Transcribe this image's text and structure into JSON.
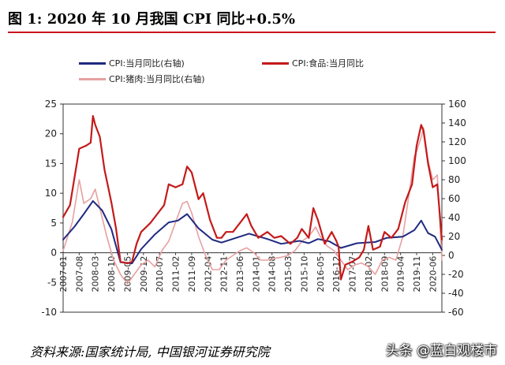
{
  "title": "图 1:  2020 年 10 月我国 CPI 同比+0.5%",
  "source": "资料来源:国家统计局, 中国银河证券研究院",
  "watermark": "头条 @蓝白观楼市",
  "colors": {
    "cpi": "#1f2a80",
    "food": "#c41a1a",
    "pork": "#e8a0a0",
    "rule": "#c8141e"
  },
  "chart_data": {
    "type": "line",
    "title": "",
    "legend": [
      {
        "name": "CPI:当月同比(右轴)",
        "color": "#1f2a80"
      },
      {
        "name": "CPI:食品:当月同比",
        "color": "#c41a1a"
      },
      {
        "name": "CPI:猪肉:当月同比(右轴)",
        "color": "#e8a0a0"
      }
    ],
    "left_axis": {
      "min": -10,
      "max": 25,
      "ticks": [
        -10,
        -5,
        0,
        5,
        10,
        15,
        20,
        25
      ]
    },
    "right_axis": {
      "min": -60,
      "max": 160,
      "ticks": [
        -60,
        -40,
        -20,
        0,
        20,
        40,
        60,
        80,
        100,
        120,
        140,
        160
      ]
    },
    "x_axis": {
      "start": "2007-01",
      "end": "2020-10",
      "tick_labels": [
        "2007-01",
        "2007-08",
        "2008-03",
        "2008-10",
        "2009-05",
        "2009-12",
        "2010-07",
        "2011-02",
        "2011-09",
        "2012-04",
        "2012-11",
        "2013-06",
        "2014-01",
        "2014-08",
        "2015-03",
        "2015-10",
        "2016-05",
        "2016-12",
        "2017-07",
        "2018-02",
        "2018-09",
        "2019-04",
        "2019-11",
        "2020-06"
      ]
    },
    "series": [
      {
        "name": "CPI:当月同比(右轴)",
        "axis": "left",
        "points": [
          [
            "2007-01",
            2.2
          ],
          [
            "2007-06",
            4.4
          ],
          [
            "2007-10",
            6.5
          ],
          [
            "2008-02",
            8.7
          ],
          [
            "2008-06",
            7.1
          ],
          [
            "2008-10",
            4.0
          ],
          [
            "2009-02",
            -1.6
          ],
          [
            "2009-07",
            -1.8
          ],
          [
            "2009-11",
            0.6
          ],
          [
            "2010-05",
            3.1
          ],
          [
            "2010-11",
            5.1
          ],
          [
            "2011-03",
            5.4
          ],
          [
            "2011-07",
            6.5
          ],
          [
            "2011-12",
            4.1
          ],
          [
            "2012-06",
            2.2
          ],
          [
            "2012-10",
            1.7
          ],
          [
            "2013-06",
            2.7
          ],
          [
            "2013-10",
            3.2
          ],
          [
            "2014-06",
            2.3
          ],
          [
            "2014-12",
            1.5
          ],
          [
            "2015-08",
            2.0
          ],
          [
            "2015-12",
            1.6
          ],
          [
            "2016-04",
            2.3
          ],
          [
            "2016-09",
            1.9
          ],
          [
            "2017-02",
            0.8
          ],
          [
            "2017-09",
            1.6
          ],
          [
            "2018-05",
            1.8
          ],
          [
            "2018-10",
            2.5
          ],
          [
            "2019-05",
            2.7
          ],
          [
            "2019-10",
            3.8
          ],
          [
            "2020-01",
            5.4
          ],
          [
            "2020-04",
            3.3
          ],
          [
            "2020-07",
            2.7
          ],
          [
            "2020-10",
            0.5
          ]
        ]
      },
      {
        "name": "CPI:食品:当月同比",
        "axis": "left",
        "points": [
          [
            "2007-01",
            6.0
          ],
          [
            "2007-04",
            8.0
          ],
          [
            "2007-08",
            17.5
          ],
          [
            "2007-11",
            18.0
          ],
          [
            "2008-01",
            18.5
          ],
          [
            "2008-02",
            23.0
          ],
          [
            "2008-03",
            21.5
          ],
          [
            "2008-05",
            19.5
          ],
          [
            "2008-07",
            14.0
          ],
          [
            "2008-10",
            8.5
          ],
          [
            "2008-12",
            4.2
          ],
          [
            "2009-02",
            -1.5
          ],
          [
            "2009-05",
            -1.8
          ],
          [
            "2009-07",
            -1.5
          ],
          [
            "2009-09",
            1.5
          ],
          [
            "2009-11",
            3.5
          ],
          [
            "2010-03",
            5.0
          ],
          [
            "2010-06",
            6.5
          ],
          [
            "2010-09",
            8.0
          ],
          [
            "2010-11",
            11.5
          ],
          [
            "2011-02",
            11.0
          ],
          [
            "2011-05",
            11.5
          ],
          [
            "2011-07",
            14.5
          ],
          [
            "2011-09",
            13.5
          ],
          [
            "2011-12",
            9.0
          ],
          [
            "2012-02",
            10.0
          ],
          [
            "2012-05",
            5.5
          ],
          [
            "2012-08",
            2.5
          ],
          [
            "2012-10",
            2.5
          ],
          [
            "2012-12",
            3.5
          ],
          [
            "2013-03",
            3.5
          ],
          [
            "2013-06",
            5.0
          ],
          [
            "2013-09",
            6.5
          ],
          [
            "2013-11",
            4.5
          ],
          [
            "2014-02",
            2.5
          ],
          [
            "2014-06",
            3.5
          ],
          [
            "2014-09",
            2.5
          ],
          [
            "2014-12",
            2.8
          ],
          [
            "2015-04",
            1.5
          ],
          [
            "2015-07",
            2.5
          ],
          [
            "2015-09",
            4.0
          ],
          [
            "2015-12",
            2.5
          ],
          [
            "2016-02",
            7.5
          ],
          [
            "2016-04",
            5.5
          ],
          [
            "2016-07",
            1.5
          ],
          [
            "2016-10",
            3.5
          ],
          [
            "2016-12",
            2.0
          ],
          [
            "2017-01",
            1.0
          ],
          [
            "2017-02",
            -4.5
          ],
          [
            "2017-04",
            -2.0
          ],
          [
            "2017-07",
            -1.5
          ],
          [
            "2017-10",
            -0.8
          ],
          [
            "2017-12",
            0.5
          ],
          [
            "2018-02",
            4.5
          ],
          [
            "2018-04",
            0.5
          ],
          [
            "2018-07",
            1.0
          ],
          [
            "2018-09",
            3.5
          ],
          [
            "2018-12",
            2.5
          ],
          [
            "2019-03",
            4.0
          ],
          [
            "2019-06",
            8.5
          ],
          [
            "2019-09",
            11.5
          ],
          [
            "2019-11",
            18.0
          ],
          [
            "2020-01",
            21.5
          ],
          [
            "2020-02",
            20.5
          ],
          [
            "2020-04",
            15.0
          ],
          [
            "2020-06",
            11.0
          ],
          [
            "2020-08",
            11.5
          ],
          [
            "2020-10",
            2.2
          ]
        ]
      },
      {
        "name": "CPI:猪肉:当月同比(右轴)",
        "axis": "right",
        "points": [
          [
            "2007-01",
            5
          ],
          [
            "2007-05",
            35
          ],
          [
            "2007-08",
            80
          ],
          [
            "2007-10",
            55
          ],
          [
            "2008-01",
            60
          ],
          [
            "2008-03",
            70
          ],
          [
            "2008-05",
            50
          ],
          [
            "2008-08",
            20
          ],
          [
            "2008-11",
            -5
          ],
          [
            "2009-02",
            -20
          ],
          [
            "2009-05",
            -30
          ],
          [
            "2009-08",
            -20
          ],
          [
            "2009-11",
            -10
          ],
          [
            "2010-02",
            -5
          ],
          [
            "2010-05",
            -12
          ],
          [
            "2010-08",
            5
          ],
          [
            "2010-11",
            15
          ],
          [
            "2011-02",
            35
          ],
          [
            "2011-05",
            55
          ],
          [
            "2011-07",
            57
          ],
          [
            "2011-09",
            45
          ],
          [
            "2011-12",
            20
          ],
          [
            "2012-03",
            0
          ],
          [
            "2012-06",
            -15
          ],
          [
            "2012-09",
            -15
          ],
          [
            "2012-12",
            -5
          ],
          [
            "2013-03",
            0
          ],
          [
            "2013-06",
            5
          ],
          [
            "2013-09",
            8
          ],
          [
            "2013-12",
            3
          ],
          [
            "2014-03",
            -5
          ],
          [
            "2014-06",
            -5
          ],
          [
            "2014-09",
            -3
          ],
          [
            "2014-12",
            -2
          ],
          [
            "2015-03",
            0
          ],
          [
            "2015-06",
            5
          ],
          [
            "2015-09",
            15
          ],
          [
            "2015-12",
            20
          ],
          [
            "2016-03",
            30
          ],
          [
            "2016-05",
            20
          ],
          [
            "2016-08",
            10
          ],
          [
            "2016-11",
            5
          ],
          [
            "2017-02",
            -5
          ],
          [
            "2017-05",
            -15
          ],
          [
            "2017-08",
            -10
          ],
          [
            "2017-11",
            -8
          ],
          [
            "2018-02",
            -12
          ],
          [
            "2018-05",
            -20
          ],
          [
            "2018-08",
            -5
          ],
          [
            "2018-11",
            -2
          ],
          [
            "2019-02",
            -5
          ],
          [
            "2019-05",
            20
          ],
          [
            "2019-08",
            70
          ],
          [
            "2019-10",
            105
          ],
          [
            "2019-11",
            110
          ],
          [
            "2020-01",
            125
          ],
          [
            "2020-02",
            135
          ],
          [
            "2020-04",
            100
          ],
          [
            "2020-06",
            80
          ],
          [
            "2020-08",
            85
          ],
          [
            "2020-10",
            -5
          ]
        ]
      }
    ]
  }
}
